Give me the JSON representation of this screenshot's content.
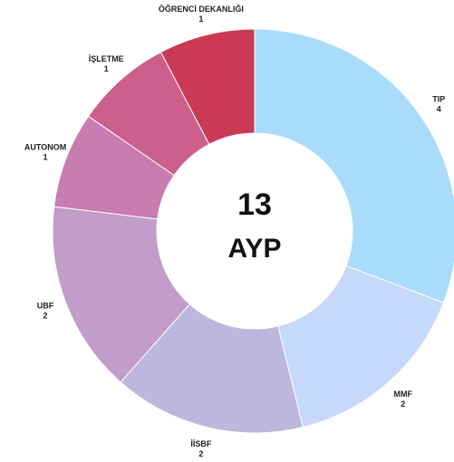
{
  "chart_data": {
    "type": "donut",
    "categories": [
      "TIP",
      "MMF",
      "İİSBF",
      "UBF",
      "AUTONOM",
      "İŞLETME",
      "ÖĞRENCİ DEKANLIĞI"
    ],
    "values": [
      4,
      2,
      2,
      2,
      1,
      1,
      1
    ],
    "colors": [
      "#a9dcfb",
      "#c6d9fb",
      "#bdb7de",
      "#c29dc9",
      "#c87cb1",
      "#cc5f8b",
      "#cb3a55"
    ],
    "center_value": 13,
    "center_label": "AYP"
  }
}
